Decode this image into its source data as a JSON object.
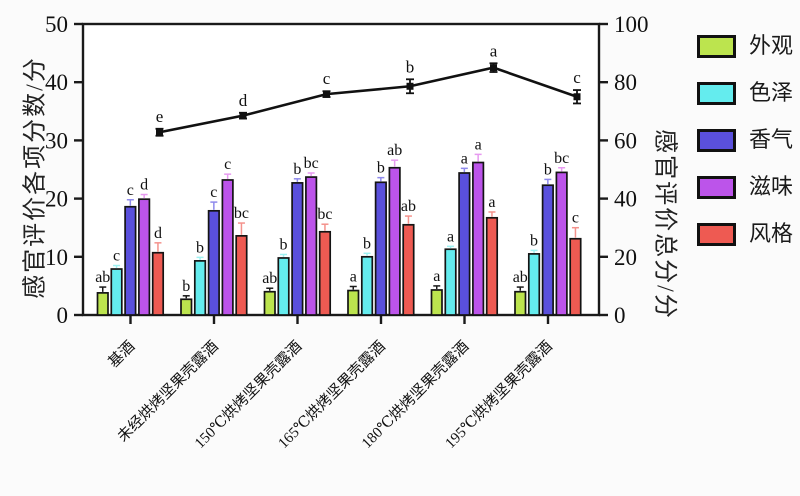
{
  "chart_data": {
    "type": "bar+line",
    "title": "",
    "categories": [
      "基酒",
      "未经烘烤坚果壳露酒",
      "150℃烘烤坚果壳露酒",
      "165℃烘烤坚果壳露酒",
      "180℃烘烤坚果壳露酒",
      "195℃烘烤坚果壳露酒"
    ],
    "left_axis": {
      "label": "感官评价各项分数/分",
      "ticks": [
        0,
        10,
        20,
        30,
        40,
        50
      ],
      "range": [
        0,
        50
      ]
    },
    "right_axis": {
      "label": "感官评价总分/分",
      "ticks": [
        0,
        20,
        40,
        60,
        80,
        100
      ],
      "range": [
        0,
        100
      ]
    },
    "x_axis": {
      "tick_rotation_deg": 45
    },
    "legend": {
      "position": "right"
    },
    "axis_color": "#1a1a1a",
    "series": [
      {
        "name": "外观",
        "color": "#bce44e",
        "err_color": "#1a1a1a",
        "values": [
          3.8,
          2.7,
          4.0,
          4.2,
          4.3,
          4.0
        ],
        "errors": [
          1.0,
          0.6,
          0.6,
          0.7,
          0.7,
          0.8
        ],
        "letters": [
          "ab",
          "b",
          "ab",
          "a",
          "a",
          "ab"
        ]
      },
      {
        "name": "色泽",
        "color": "#64ecee",
        "err_color": "#9ef2f2",
        "values": [
          7.9,
          9.3,
          9.8,
          10.0,
          11.3,
          10.5
        ],
        "errors": [
          0.6,
          0.6,
          0.6,
          0.6,
          0.5,
          0.6
        ],
        "letters": [
          "c",
          "b",
          "b",
          "b",
          "a",
          "b"
        ]
      },
      {
        "name": "香气",
        "color": "#5a50dc",
        "err_color": "#8f8aec",
        "values": [
          18.6,
          17.9,
          22.7,
          22.8,
          24.4,
          22.3
        ],
        "errors": [
          1.2,
          1.5,
          0.7,
          0.8,
          0.8,
          1.0
        ],
        "letters": [
          "c",
          "c",
          "b",
          "b",
          "a",
          "b"
        ]
      },
      {
        "name": "滋味",
        "color": "#bc54ea",
        "err_color": "#e79af0",
        "values": [
          19.9,
          23.2,
          23.7,
          25.3,
          26.2,
          24.5
        ],
        "errors": [
          0.8,
          1.0,
          0.7,
          1.3,
          1.4,
          0.8
        ],
        "letters": [
          "d",
          "c",
          "bc",
          "ab",
          "a",
          "bc"
        ]
      },
      {
        "name": "风格",
        "color": "#ee5a52",
        "err_color": "#f4928c",
        "values": [
          10.7,
          13.6,
          14.3,
          15.5,
          16.7,
          13.1
        ],
        "errors": [
          1.7,
          2.2,
          1.3,
          1.5,
          1.0,
          1.9
        ],
        "letters": [
          "d",
          "bc",
          "bc",
          "ab",
          "a",
          "c"
        ]
      }
    ],
    "line_series": {
      "name": "感官评价总分",
      "axis": "right",
      "color": "#111111",
      "marker": "square",
      "values": [
        62.8,
        68.5,
        75.9,
        78.6,
        85.0,
        75.0
      ],
      "errors": [
        1.2,
        1.0,
        1.0,
        2.4,
        1.5,
        2.3
      ],
      "letters": [
        "e",
        "d",
        "c",
        "b",
        "a",
        "c"
      ]
    }
  }
}
